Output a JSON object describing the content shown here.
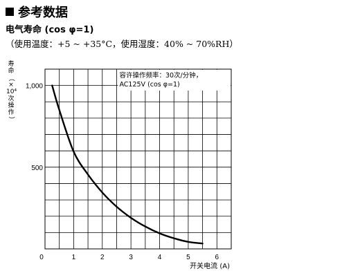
{
  "section_title": "参考数据",
  "subtitle": "电气寿命 (cos φ=1)",
  "conditions": "（使用温度：+5 ~ +35°C，使用湿度：40% ~ 70%RH）",
  "chart_data": {
    "type": "line",
    "title": "电气寿命 (cos φ=1)",
    "xlabel": "开关电流 (A)",
    "ylabel": [
      "寿",
      "命",
      "（",
      "×",
      "10⁴",
      "次",
      "操",
      "作",
      "）"
    ],
    "xlim": [
      0,
      6.5
    ],
    "ylim": [
      0,
      1100
    ],
    "xticks": [
      "0",
      "1",
      "2",
      "3",
      "4",
      "5",
      "6"
    ],
    "yticks": [
      "500",
      "1,000"
    ],
    "grid": true,
    "annotation": [
      "容许操作频率：30次/分钟，",
      "AC125V (cos φ=1)"
    ],
    "series": [
      {
        "name": "",
        "x": [
          0.25,
          0.5,
          1.0,
          1.5,
          2.0,
          2.5,
          3.0,
          3.5,
          4.0,
          4.5,
          5.0,
          5.5
        ],
        "y": [
          1000,
          850,
          595,
          455,
          345,
          258,
          190,
          137,
          95,
          65,
          43,
          33
        ]
      }
    ]
  }
}
